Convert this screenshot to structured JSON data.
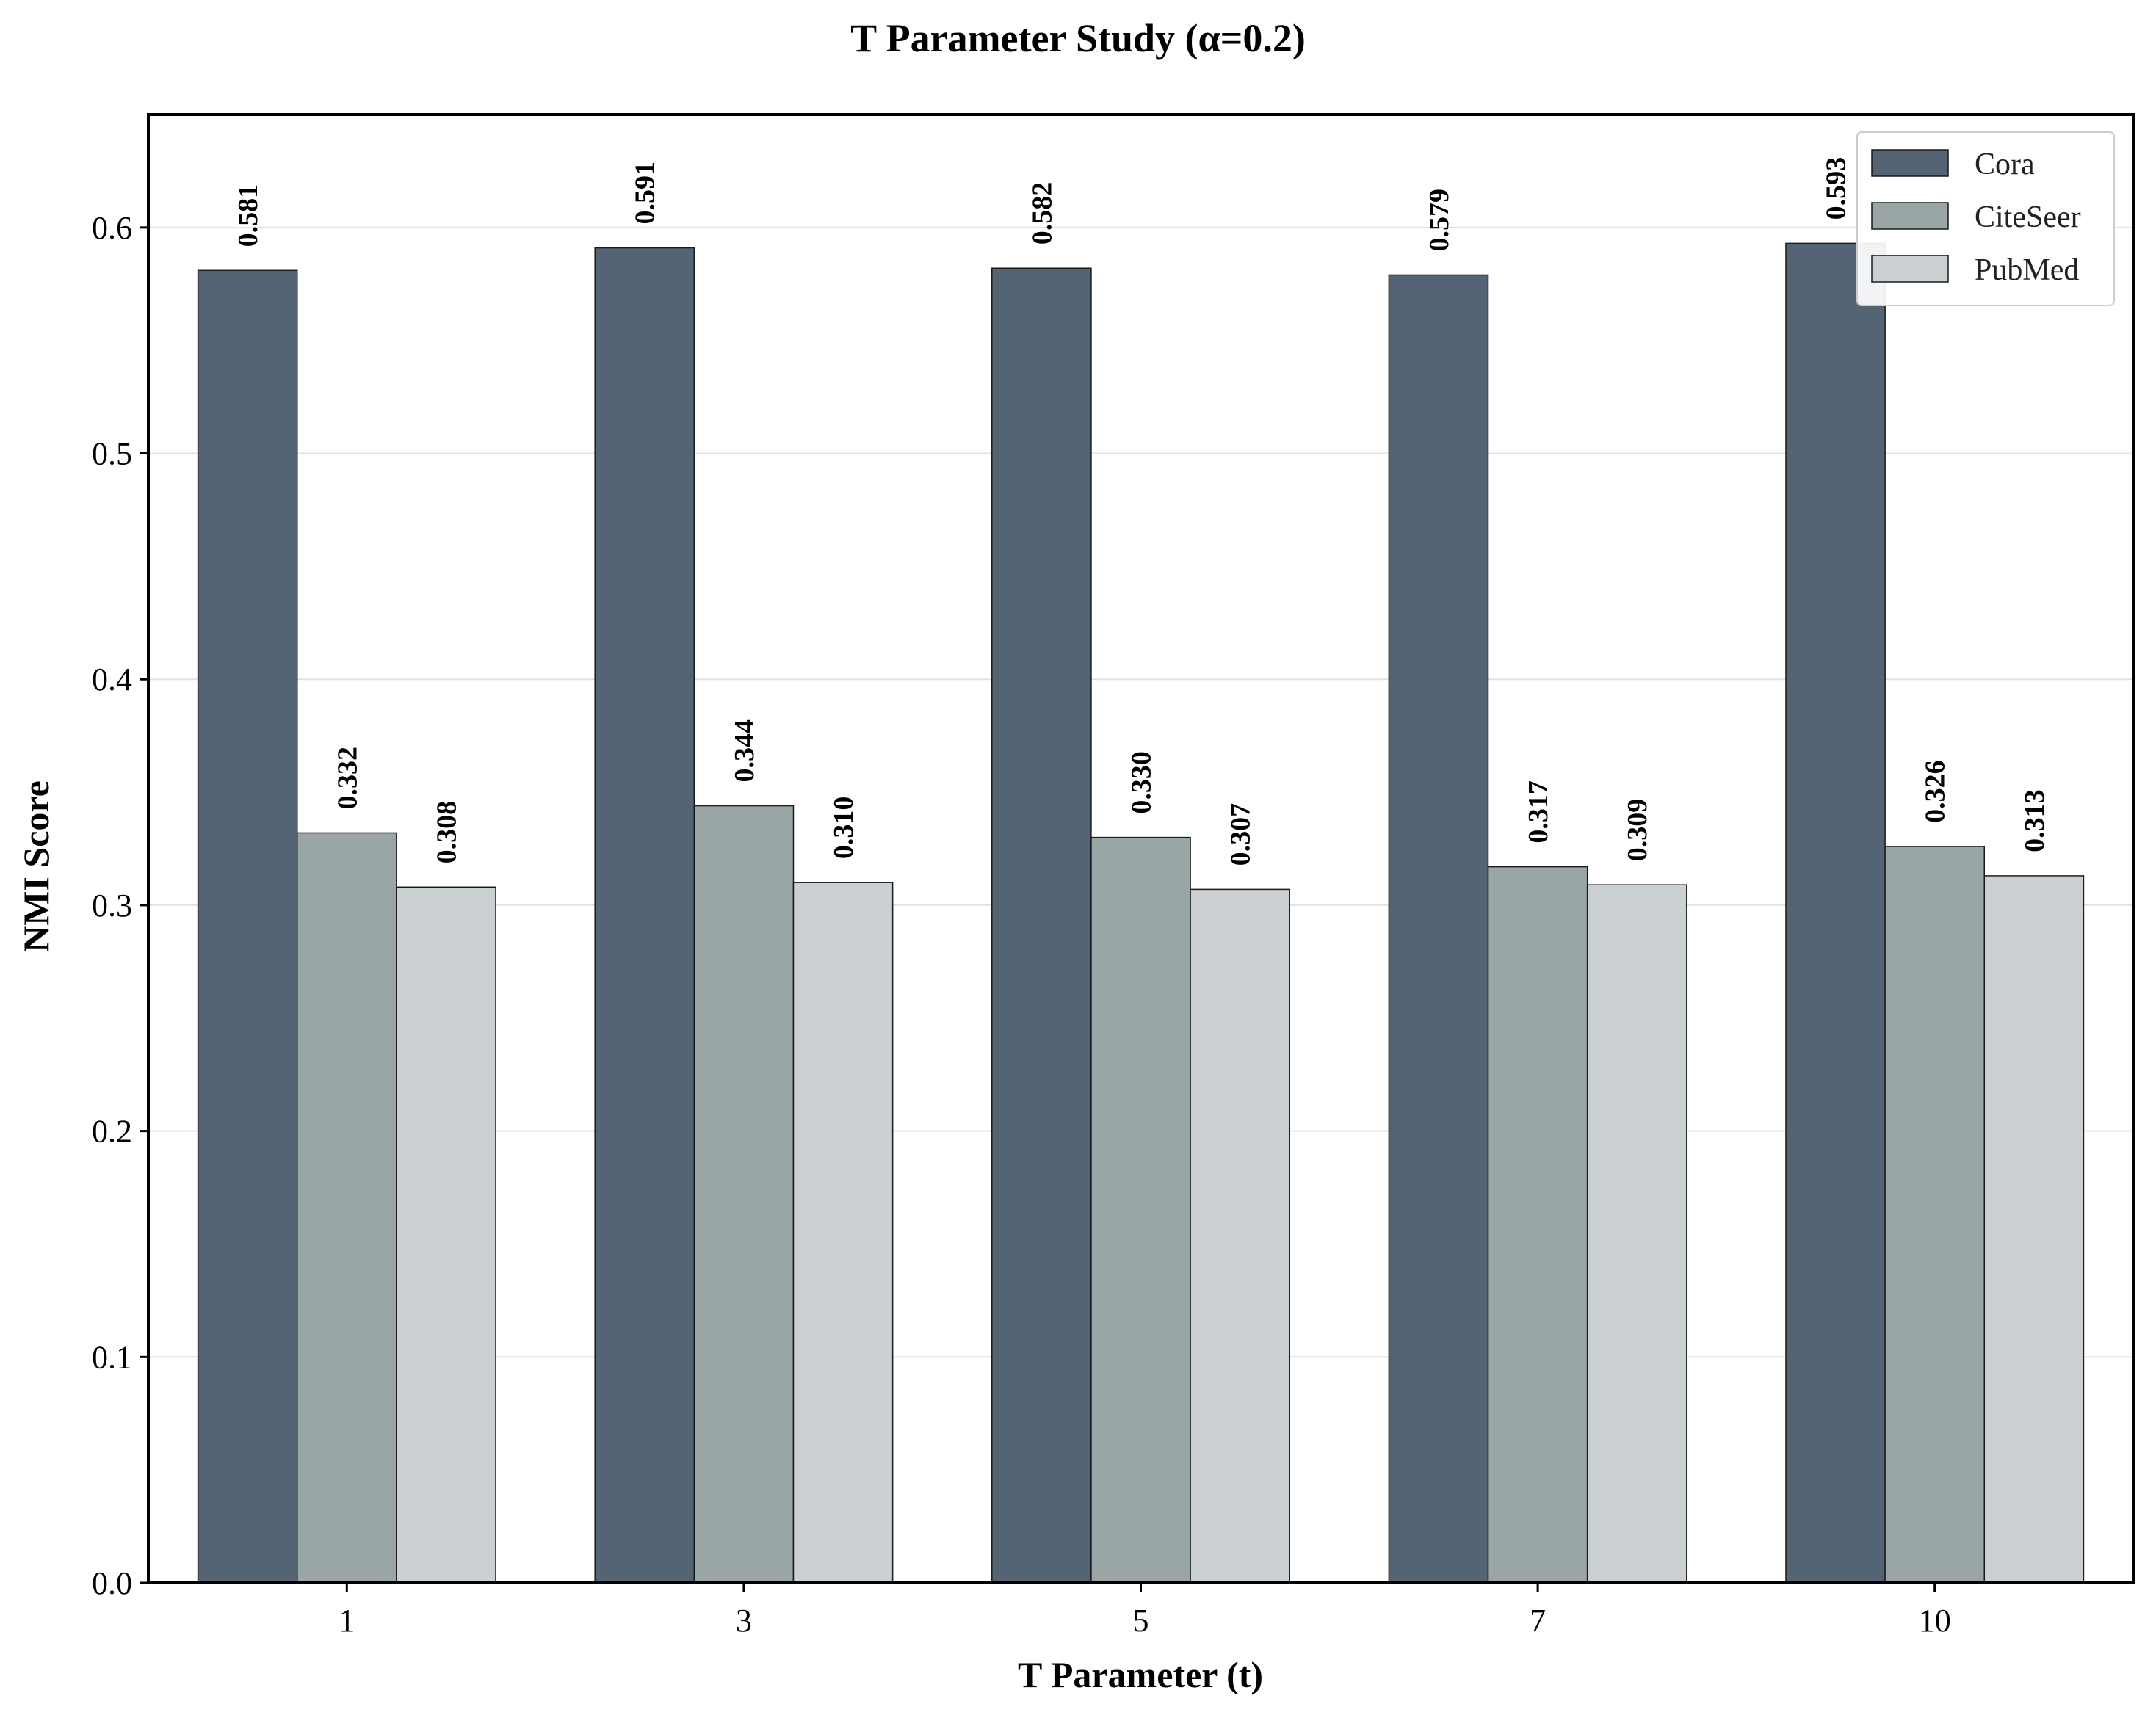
{
  "chart_data": {
    "type": "bar",
    "title": "T Parameter Study (α=0.2)",
    "xlabel": "T Parameter (t)",
    "ylabel": "NMI Score",
    "categories": [
      "1",
      "3",
      "5",
      "7",
      "10"
    ],
    "ylim": [
      0,
      0.65
    ],
    "yticks": [
      "0.0",
      "0.1",
      "0.2",
      "0.3",
      "0.4",
      "0.5",
      "0.6"
    ],
    "grid": "horizontal",
    "legend_position": "top-right",
    "series": [
      {
        "name": "Cora",
        "color": "#546474",
        "values": [
          0.581,
          0.591,
          0.582,
          0.579,
          0.593
        ],
        "labels": [
          "0.581",
          "0.591",
          "0.582",
          "0.579",
          "0.593"
        ]
      },
      {
        "name": "CiteSeer",
        "color": "#9aa5a5",
        "values": [
          0.332,
          0.344,
          0.33,
          0.317,
          0.326
        ],
        "labels": [
          "0.332",
          "0.344",
          "0.330",
          "0.317",
          "0.326"
        ]
      },
      {
        "name": "PubMed",
        "color": "#cbd0d3",
        "values": [
          0.308,
          0.31,
          0.307,
          0.309,
          0.313
        ],
        "labels": [
          "0.308",
          "0.310",
          "0.307",
          "0.309",
          "0.313"
        ]
      }
    ]
  }
}
